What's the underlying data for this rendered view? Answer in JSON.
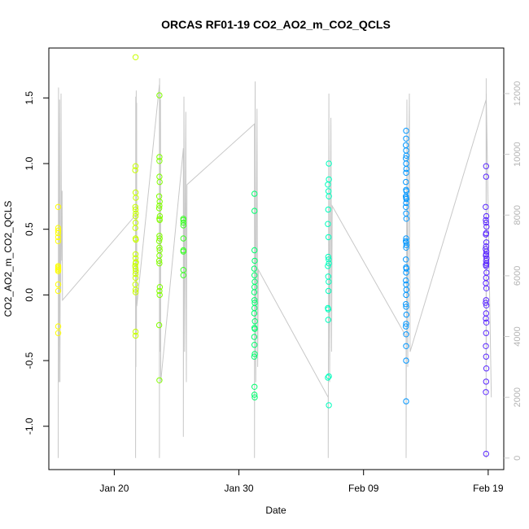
{
  "chart_data": {
    "type": "scatter",
    "title": "ORCAS RF01-19 CO2_AO2_m_CO2_QCLS",
    "xlabel": "Date",
    "ylabel": "CO2_AO2_m_CO2_QCLS",
    "x_ticks": [
      {
        "date": "2016-01-20",
        "label": "Jan 20"
      },
      {
        "date": "2016-01-30",
        "label": "Jan 30"
      },
      {
        "date": "2016-02-09",
        "label": "Feb 09"
      },
      {
        "date": "2016-02-19",
        "label": "Feb 19"
      }
    ],
    "xlim": [
      "2016-01-14T18:00",
      "2016-02-20T06:00"
    ],
    "ylim": [
      -1.33,
      1.88
    ],
    "y_ticks": [
      -1.0,
      -0.5,
      0.0,
      0.5,
      1.0,
      1.5
    ],
    "y2lim": [
      -380,
      13500
    ],
    "y2_ticks": [
      0,
      2000,
      4000,
      6000,
      8000,
      10000,
      12000
    ],
    "y2_color": "#c8c8c8",
    "grid": false,
    "series": [
      {
        "date": "2016-01-15T12:00",
        "color": "#ffff00",
        "points": [
          [
            0.0,
            0.67
          ],
          [
            0.0,
            0.51
          ],
          [
            0.0,
            0.49
          ],
          [
            0.0,
            0.47
          ],
          [
            0.0,
            0.44
          ],
          [
            0.0,
            0.41
          ],
          [
            0.0,
            0.22
          ],
          [
            0.0,
            0.21
          ],
          [
            0.0,
            0.2
          ],
          [
            0.0,
            0.19
          ],
          [
            0.0,
            0.18
          ],
          [
            0.0,
            0.08
          ],
          [
            0.0,
            0.03
          ],
          [
            0.0,
            -0.24
          ],
          [
            0.0,
            -0.29
          ]
        ]
      },
      {
        "date": "2016-01-21T17:00",
        "color": "#c8ff00",
        "points": [
          [
            0.0,
            1.81
          ],
          [
            0.0,
            0.98
          ],
          [
            -0.03,
            0.95
          ],
          [
            0.0,
            0.78
          ],
          [
            0.02,
            0.74
          ],
          [
            -0.02,
            0.67
          ],
          [
            0.0,
            0.65
          ],
          [
            0.02,
            0.62
          ],
          [
            0.0,
            0.6
          ],
          [
            0.0,
            0.55
          ],
          [
            -0.02,
            0.51
          ],
          [
            0.0,
            0.43
          ],
          [
            0.02,
            0.42
          ],
          [
            0.0,
            0.31
          ],
          [
            0.0,
            0.28
          ],
          [
            0.03,
            0.25
          ],
          [
            0.0,
            0.24
          ],
          [
            -0.03,
            0.22
          ],
          [
            0.0,
            0.2
          ],
          [
            0.02,
            0.18
          ],
          [
            0.0,
            0.16
          ],
          [
            0.0,
            0.13
          ],
          [
            -0.02,
            0.08
          ],
          [
            0.0,
            0.04
          ],
          [
            0.0,
            0.02
          ],
          [
            0.0,
            -0.28
          ],
          [
            0.0,
            -0.31
          ]
        ]
      },
      {
        "date": "2016-01-23T15:00",
        "color": "#82ff00",
        "points": [
          [
            0.0,
            1.52
          ],
          [
            0.0,
            1.05
          ],
          [
            0.0,
            1.02
          ],
          [
            0.0,
            0.9
          ],
          [
            0.02,
            0.86
          ],
          [
            -0.02,
            0.75
          ],
          [
            0.02,
            0.71
          ],
          [
            0.0,
            0.68
          ],
          [
            -0.02,
            0.66
          ],
          [
            0.03,
            0.6
          ],
          [
            0.0,
            0.58
          ],
          [
            0.02,
            0.57
          ],
          [
            0.0,
            0.45
          ],
          [
            0.02,
            0.43
          ],
          [
            -0.02,
            0.41
          ],
          [
            0.0,
            0.36
          ],
          [
            0.02,
            0.34
          ],
          [
            0.0,
            0.3
          ],
          [
            -0.02,
            0.26
          ],
          [
            0.0,
            0.24
          ],
          [
            0.03,
            0.06
          ],
          [
            0.0,
            0.03
          ],
          [
            0.02,
            0.0
          ],
          [
            -0.02,
            -0.23
          ],
          [
            0.0,
            -0.65
          ]
        ]
      },
      {
        "date": "2016-01-25T13:00",
        "color": "#3cff28",
        "points": [
          [
            0.0,
            0.58
          ],
          [
            0.0,
            0.57
          ],
          [
            0.0,
            0.55
          ],
          [
            0.0,
            0.53
          ],
          [
            0.0,
            0.43
          ],
          [
            0.0,
            0.34
          ],
          [
            0.0,
            0.33
          ],
          [
            0.0,
            0.19
          ],
          [
            0.0,
            0.15
          ]
        ]
      },
      {
        "date": "2016-01-31T06:00",
        "color": "#00ff6e",
        "points": [
          [
            0.0,
            0.77
          ],
          [
            0.0,
            0.64
          ],
          [
            0.0,
            0.34
          ],
          [
            0.02,
            0.26
          ],
          [
            -0.02,
            0.2
          ],
          [
            0.0,
            0.15
          ],
          [
            0.02,
            0.1
          ],
          [
            0.0,
            0.06
          ],
          [
            -0.02,
            0.02
          ],
          [
            0.0,
            -0.04
          ],
          [
            0.02,
            -0.06
          ],
          [
            0.0,
            -0.1
          ],
          [
            -0.02,
            -0.14
          ],
          [
            0.03,
            -0.2
          ],
          [
            0.0,
            -0.25
          ],
          [
            0.02,
            -0.26
          ],
          [
            -0.02,
            -0.32
          ],
          [
            0.0,
            -0.38
          ],
          [
            0.02,
            -0.45
          ],
          [
            -0.02,
            -0.47
          ],
          [
            0.0,
            -0.7
          ],
          [
            0.0,
            -0.76
          ],
          [
            0.02,
            -0.78
          ]
        ]
      },
      {
        "date": "2016-02-06T04:00",
        "color": "#00ffbe",
        "points": [
          [
            0.05,
            1.0
          ],
          [
            0.05,
            0.88
          ],
          [
            -0.03,
            0.84
          ],
          [
            0.02,
            0.79
          ],
          [
            0.05,
            0.75
          ],
          [
            0.0,
            0.65
          ],
          [
            -0.03,
            0.54
          ],
          [
            0.02,
            0.44
          ],
          [
            0.0,
            0.29
          ],
          [
            0.03,
            0.27
          ],
          [
            0.05,
            0.24
          ],
          [
            -0.03,
            0.22
          ],
          [
            0.0,
            0.14
          ],
          [
            0.03,
            0.1
          ],
          [
            0.02,
            0.03
          ],
          [
            -0.03,
            -0.1
          ],
          [
            0.0,
            -0.11
          ],
          [
            0.0,
            -0.19
          ],
          [
            0.05,
            -0.62
          ],
          [
            -0.03,
            -0.63
          ],
          [
            0.05,
            -0.84
          ]
        ]
      },
      {
        "date": "2016-02-12T10:00",
        "color": "#0096ff",
        "points": [
          [
            0.0,
            1.25
          ],
          [
            0.0,
            1.19
          ],
          [
            -0.02,
            1.14
          ],
          [
            0.0,
            1.1
          ],
          [
            0.02,
            1.06
          ],
          [
            -0.02,
            1.04
          ],
          [
            0.0,
            1.0
          ],
          [
            0.02,
            0.96
          ],
          [
            0.0,
            0.93
          ],
          [
            -0.02,
            0.86
          ],
          [
            0.0,
            0.8
          ],
          [
            0.02,
            0.79
          ],
          [
            -0.02,
            0.75
          ],
          [
            0.0,
            0.74
          ],
          [
            0.02,
            0.73
          ],
          [
            0.0,
            0.7
          ],
          [
            -0.02,
            0.67
          ],
          [
            0.0,
            0.62
          ],
          [
            0.02,
            0.58
          ],
          [
            0.0,
            0.43
          ],
          [
            -0.02,
            0.41
          ],
          [
            0.0,
            0.4
          ],
          [
            0.02,
            0.38
          ],
          [
            0.0,
            0.36
          ],
          [
            -0.02,
            0.27
          ],
          [
            0.0,
            0.21
          ],
          [
            0.02,
            0.2
          ],
          [
            0.0,
            0.17
          ],
          [
            -0.02,
            0.11
          ],
          [
            0.0,
            0.08
          ],
          [
            0.02,
            0.04
          ],
          [
            0.0,
            0.0
          ],
          [
            -0.02,
            -0.07
          ],
          [
            0.0,
            -0.09
          ],
          [
            0.02,
            -0.15
          ],
          [
            0.0,
            -0.22
          ],
          [
            -0.02,
            -0.24
          ],
          [
            0.0,
            -0.3
          ],
          [
            0.0,
            -0.39
          ],
          [
            0.0,
            -0.5
          ],
          [
            0.0,
            -0.81
          ]
        ]
      },
      {
        "date": "2016-02-18T20:00",
        "color": "#5a28ff",
        "points": [
          [
            0.0,
            0.98
          ],
          [
            0.0,
            0.9
          ],
          [
            -0.03,
            0.67
          ],
          [
            0.02,
            0.6
          ],
          [
            -0.02,
            0.57
          ],
          [
            0.0,
            0.55
          ],
          [
            0.03,
            0.52
          ],
          [
            0.0,
            0.47
          ],
          [
            -0.02,
            0.46
          ],
          [
            0.02,
            0.4
          ],
          [
            0.0,
            0.37
          ],
          [
            -0.03,
            0.35
          ],
          [
            0.02,
            0.33
          ],
          [
            0.0,
            0.31
          ],
          [
            -0.02,
            0.3
          ],
          [
            0.03,
            0.28
          ],
          [
            0.0,
            0.26
          ],
          [
            0.02,
            0.24
          ],
          [
            -0.02,
            0.23
          ],
          [
            0.0,
            0.22
          ],
          [
            0.03,
            0.17
          ],
          [
            0.0,
            0.13
          ],
          [
            -0.02,
            0.09
          ],
          [
            0.02,
            0.05
          ],
          [
            0.0,
            -0.04
          ],
          [
            -0.03,
            -0.06
          ],
          [
            0.02,
            -0.08
          ],
          [
            0.0,
            -0.14
          ],
          [
            -0.02,
            -0.18
          ],
          [
            0.02,
            -0.21
          ],
          [
            0.0,
            -0.29
          ],
          [
            -0.02,
            -0.39
          ],
          [
            0.0,
            -0.47
          ],
          [
            0.02,
            -0.56
          ],
          [
            0.0,
            -0.66
          ],
          [
            -0.02,
            -0.74
          ],
          [
            0.0,
            -1.21
          ]
        ]
      }
    ],
    "altitude_line": {
      "color": "#c8c8c8",
      "flights": [
        {
          "start": "2016-01-15T12:00",
          "end": "2016-01-21T17:00",
          "y2": [
            0,
            12200,
            2500,
            8000,
            11800,
            2500,
            7500,
            5500,
            12000,
            8000,
            6500,
            8800,
            5200,
            8000
          ]
        },
        {
          "start": "2016-01-21T17:00",
          "end": "2016-01-23T15:00",
          "y2": [
            0,
            11900,
            3000,
            8600,
            12100,
            4000,
            11700,
            5000,
            12300
          ]
        },
        {
          "start": "2016-01-23T15:00",
          "end": "2016-01-25T13:00",
          "y2": [
            0,
            12500,
            3500,
            9700,
            12000,
            4500,
            11800,
            2500,
            10200
          ]
        },
        {
          "start": "2016-01-25T13:00",
          "end": "2016-01-31T06:00",
          "y2": [
            700,
            11900,
            3500,
            8000,
            11400,
            2500,
            9000,
            11000
          ]
        },
        {
          "start": "2016-01-31T06:00",
          "end": "2016-02-06T04:00",
          "y2": [
            0,
            12400,
            2500,
            7000,
            11500,
            3000,
            6200,
            2000
          ]
        },
        {
          "start": "2016-02-06T04:00",
          "end": "2016-02-12T10:00",
          "y2": [
            0,
            12000,
            2500,
            7000,
            11200,
            3500,
            8300,
            4000
          ]
        },
        {
          "start": "2016-02-12T10:00",
          "end": "2016-02-18T20:00",
          "y2": [
            0,
            11800,
            3000,
            9000,
            12000,
            3500,
            11800
          ]
        },
        {
          "start": "2016-02-18T20:00",
          "end": "2016-02-19T06:00",
          "y2": [
            0,
            12500,
            3000,
            9500,
            12000,
            3200,
            11800,
            2000
          ]
        }
      ]
    }
  }
}
